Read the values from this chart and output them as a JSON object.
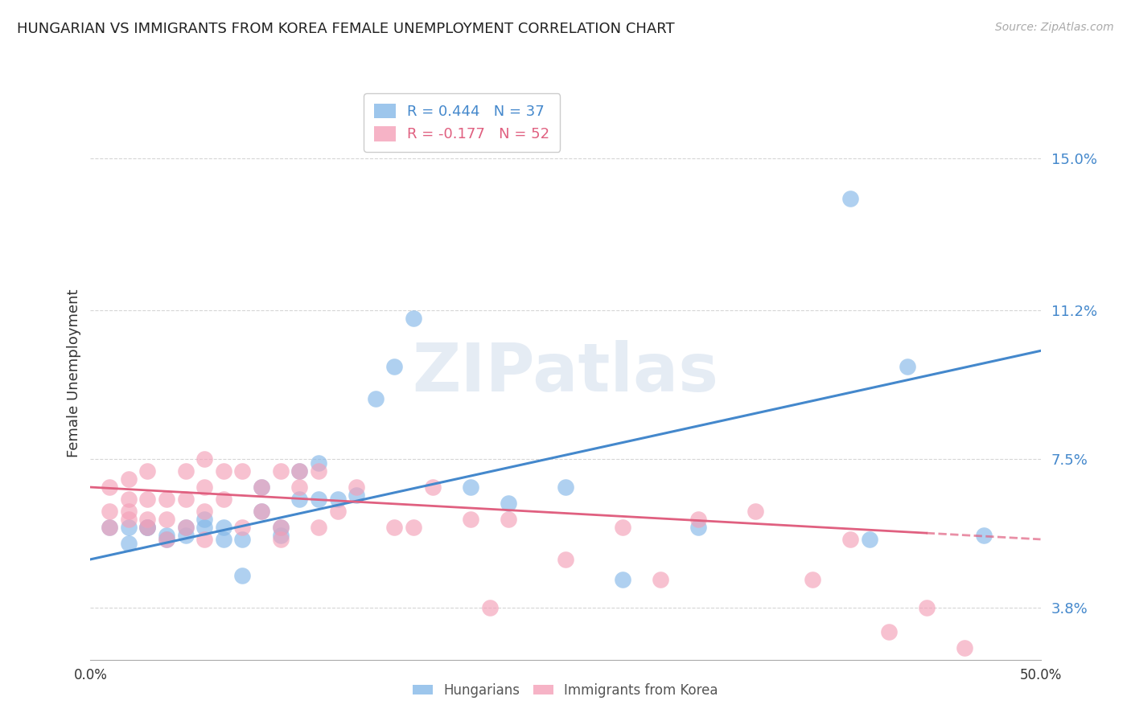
{
  "title": "HUNGARIAN VS IMMIGRANTS FROM KOREA FEMALE UNEMPLOYMENT CORRELATION CHART",
  "source": "Source: ZipAtlas.com",
  "ylabel": "Female Unemployment",
  "y_ticks": [
    0.038,
    0.075,
    0.112,
    0.15
  ],
  "y_tick_labels": [
    "3.8%",
    "7.5%",
    "11.2%",
    "15.0%"
  ],
  "xlim": [
    0.0,
    0.5
  ],
  "ylim": [
    0.025,
    0.168
  ],
  "watermark": "ZIPatlas",
  "hungarian_color": "#85b8e8",
  "korean_color": "#f4a0b8",
  "trendline_hungarian_color": "#4488cc",
  "trendline_korean_color": "#e06080",
  "background_color": "#ffffff",
  "grid_color": "#cccccc",
  "hungarian_x": [
    0.01,
    0.02,
    0.02,
    0.03,
    0.03,
    0.04,
    0.04,
    0.05,
    0.05,
    0.06,
    0.06,
    0.07,
    0.07,
    0.08,
    0.08,
    0.09,
    0.09,
    0.1,
    0.1,
    0.11,
    0.11,
    0.12,
    0.12,
    0.13,
    0.14,
    0.15,
    0.16,
    0.17,
    0.2,
    0.22,
    0.25,
    0.28,
    0.32,
    0.4,
    0.41,
    0.43,
    0.47
  ],
  "hungarian_y": [
    0.058,
    0.054,
    0.058,
    0.058,
    0.058,
    0.056,
    0.055,
    0.056,
    0.058,
    0.058,
    0.06,
    0.055,
    0.058,
    0.046,
    0.055,
    0.062,
    0.068,
    0.056,
    0.058,
    0.065,
    0.072,
    0.065,
    0.074,
    0.065,
    0.066,
    0.09,
    0.098,
    0.11,
    0.068,
    0.064,
    0.068,
    0.045,
    0.058,
    0.14,
    0.055,
    0.098,
    0.056
  ],
  "korean_x": [
    0.01,
    0.01,
    0.01,
    0.02,
    0.02,
    0.02,
    0.02,
    0.03,
    0.03,
    0.03,
    0.03,
    0.04,
    0.04,
    0.04,
    0.05,
    0.05,
    0.05,
    0.06,
    0.06,
    0.06,
    0.06,
    0.07,
    0.07,
    0.08,
    0.08,
    0.09,
    0.09,
    0.1,
    0.1,
    0.1,
    0.11,
    0.11,
    0.12,
    0.12,
    0.13,
    0.14,
    0.16,
    0.17,
    0.18,
    0.2,
    0.21,
    0.22,
    0.25,
    0.28,
    0.3,
    0.32,
    0.35,
    0.38,
    0.4,
    0.42,
    0.44,
    0.46
  ],
  "korean_y": [
    0.062,
    0.068,
    0.058,
    0.062,
    0.065,
    0.06,
    0.07,
    0.072,
    0.065,
    0.06,
    0.058,
    0.065,
    0.06,
    0.055,
    0.065,
    0.072,
    0.058,
    0.075,
    0.068,
    0.062,
    0.055,
    0.072,
    0.065,
    0.072,
    0.058,
    0.068,
    0.062,
    0.072,
    0.055,
    0.058,
    0.072,
    0.068,
    0.072,
    0.058,
    0.062,
    0.068,
    0.058,
    0.058,
    0.068,
    0.06,
    0.038,
    0.06,
    0.05,
    0.058,
    0.045,
    0.06,
    0.062,
    0.045,
    0.055,
    0.032,
    0.038,
    0.028
  ],
  "trendline_h_x0": 0.0,
  "trendline_h_x1": 0.5,
  "trendline_h_y0": 0.05,
  "trendline_h_y1": 0.102,
  "trendline_k_x0": 0.0,
  "trendline_k_x1": 0.5,
  "trendline_k_y0": 0.068,
  "trendline_k_y1": 0.055,
  "trendline_k_solid_end": 0.44,
  "legend_r1": "R = 0.444",
  "legend_n1": "N = 37",
  "legend_r2": "R = -0.177",
  "legend_n2": "N = 52",
  "legend_color1": "#4488cc",
  "legend_color2": "#e06080",
  "legend_bottom1": "Hungarians",
  "legend_bottom2": "Immigrants from Korea"
}
